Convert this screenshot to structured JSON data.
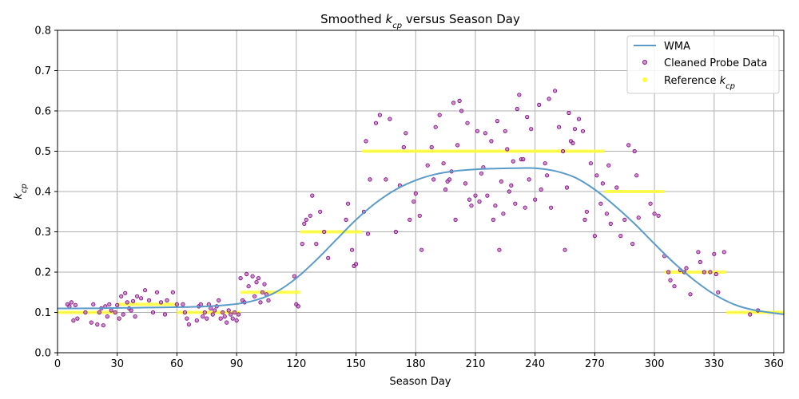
{
  "chart_data": {
    "type": "scatter",
    "title": {
      "prefix": "Smoothed ",
      "symbol": "k",
      "subscript": "cp",
      "suffix": " versus Season Day"
    },
    "xlabel": "Season Day",
    "ylabel": {
      "symbol": "k",
      "subscript": "cp"
    },
    "xlim": [
      0,
      365
    ],
    "ylim": [
      0,
      0.8
    ],
    "xticks": [
      0,
      30,
      60,
      90,
      120,
      150,
      180,
      210,
      240,
      270,
      300,
      330,
      360
    ],
    "yticks": [
      0.0,
      0.1,
      0.2,
      0.3,
      0.4,
      0.5,
      0.6,
      0.7,
      0.8
    ],
    "xtick_labels": [
      "0",
      "30",
      "60",
      "90",
      "120",
      "150",
      "180",
      "210",
      "240",
      "270",
      "300",
      "330",
      "360"
    ],
    "ytick_labels": [
      "0.0",
      "0.1",
      "0.2",
      "0.3",
      "0.4",
      "0.5",
      "0.6",
      "0.7",
      "0.8"
    ],
    "grid": true,
    "legend_position": "top-right",
    "legend": {
      "wma": "WMA",
      "probe": "Cleaned Probe Data",
      "reference": {
        "prefix": "Reference ",
        "symbol": "k",
        "subscript": "cp"
      }
    },
    "colors": {
      "wma": "#5b9bc8",
      "probe_fill": "#b565b5",
      "probe_edge": "#800080",
      "reference": "#ffff33",
      "grid": "#b0b0b0"
    },
    "series": [
      {
        "id": "wma",
        "kind": "line",
        "x": [
          0,
          15,
          30,
          45,
          60,
          75,
          90,
          100,
          110,
          120,
          130,
          140,
          150,
          160,
          170,
          180,
          190,
          200,
          210,
          220,
          230,
          240,
          250,
          260,
          270,
          280,
          290,
          300,
          310,
          320,
          330,
          340,
          350,
          365
        ],
        "y": [
          0.11,
          0.11,
          0.111,
          0.112,
          0.113,
          0.115,
          0.121,
          0.131,
          0.151,
          0.185,
          0.23,
          0.28,
          0.33,
          0.372,
          0.405,
          0.428,
          0.443,
          0.451,
          0.455,
          0.457,
          0.458,
          0.458,
          0.451,
          0.435,
          0.405,
          0.365,
          0.32,
          0.27,
          0.222,
          0.18,
          0.145,
          0.12,
          0.106,
          0.095
        ]
      },
      {
        "id": "reference",
        "kind": "step",
        "segments": [
          {
            "x0": 0,
            "x1": 30,
            "y": 0.1
          },
          {
            "x0": 30,
            "x1": 60,
            "y": 0.12
          },
          {
            "x0": 60,
            "x1": 92,
            "y": 0.1
          },
          {
            "x0": 92,
            "x1": 122,
            "y": 0.15
          },
          {
            "x0": 122,
            "x1": 153,
            "y": 0.3
          },
          {
            "x0": 153,
            "x1": 275,
            "y": 0.5
          },
          {
            "x0": 275,
            "x1": 305,
            "y": 0.4
          },
          {
            "x0": 305,
            "x1": 336,
            "y": 0.2
          },
          {
            "x0": 336,
            "x1": 365,
            "y": 0.1
          }
        ]
      },
      {
        "id": "probe",
        "kind": "scatter",
        "points": [
          [
            5,
            0.12
          ],
          [
            6,
            0.115
          ],
          [
            7,
            0.125
          ],
          [
            8,
            0.08
          ],
          [
            9,
            0.118
          ],
          [
            10,
            0.085
          ],
          [
            14,
            0.1
          ],
          [
            17,
            0.075
          ],
          [
            18,
            0.12
          ],
          [
            20,
            0.07
          ],
          [
            21,
            0.1
          ],
          [
            22,
            0.11
          ],
          [
            23,
            0.068
          ],
          [
            24,
            0.115
          ],
          [
            25,
            0.09
          ],
          [
            26,
            0.12
          ],
          [
            27,
            0.105
          ],
          [
            29,
            0.1
          ],
          [
            30,
            0.118
          ],
          [
            31,
            0.085
          ],
          [
            32,
            0.14
          ],
          [
            33,
            0.095
          ],
          [
            34,
            0.148
          ],
          [
            35,
            0.125
          ],
          [
            36,
            0.11
          ],
          [
            37,
            0.105
          ],
          [
            38,
            0.128
          ],
          [
            39,
            0.09
          ],
          [
            40,
            0.14
          ],
          [
            42,
            0.135
          ],
          [
            44,
            0.155
          ],
          [
            46,
            0.13
          ],
          [
            48,
            0.1
          ],
          [
            50,
            0.15
          ],
          [
            52,
            0.125
          ],
          [
            54,
            0.095
          ],
          [
            55,
            0.13
          ],
          [
            58,
            0.15
          ],
          [
            60,
            0.12
          ],
          [
            63,
            0.12
          ],
          [
            64,
            0.1
          ],
          [
            65,
            0.085
          ],
          [
            66,
            0.07
          ],
          [
            70,
            0.08
          ],
          [
            71,
            0.115
          ],
          [
            72,
            0.12
          ],
          [
            73,
            0.09
          ],
          [
            74,
            0.1
          ],
          [
            75,
            0.085
          ],
          [
            76,
            0.12
          ],
          [
            77,
            0.11
          ],
          [
            78,
            0.095
          ],
          [
            79,
            0.105
          ],
          [
            80,
            0.115
          ],
          [
            81,
            0.13
          ],
          [
            82,
            0.085
          ],
          [
            83,
            0.1
          ],
          [
            84,
            0.09
          ],
          [
            85,
            0.075
          ],
          [
            86,
            0.105
          ],
          [
            87,
            0.095
          ],
          [
            88,
            0.085
          ],
          [
            89,
            0.1
          ],
          [
            90,
            0.08
          ],
          [
            91,
            0.095
          ],
          [
            92,
            0.185
          ],
          [
            93,
            0.13
          ],
          [
            94,
            0.125
          ],
          [
            95,
            0.195
          ],
          [
            96,
            0.165
          ],
          [
            98,
            0.19
          ],
          [
            99,
            0.14
          ],
          [
            100,
            0.175
          ],
          [
            101,
            0.185
          ],
          [
            102,
            0.125
          ],
          [
            103,
            0.15
          ],
          [
            104,
            0.17
          ],
          [
            105,
            0.145
          ],
          [
            106,
            0.13
          ],
          [
            119,
            0.19
          ],
          [
            120,
            0.12
          ],
          [
            121,
            0.115
          ],
          [
            123,
            0.27
          ],
          [
            124,
            0.32
          ],
          [
            125,
            0.33
          ],
          [
            127,
            0.34
          ],
          [
            128,
            0.39
          ],
          [
            130,
            0.27
          ],
          [
            132,
            0.35
          ],
          [
            134,
            0.3
          ],
          [
            136,
            0.235
          ],
          [
            145,
            0.33
          ],
          [
            146,
            0.37
          ],
          [
            148,
            0.255
          ],
          [
            149,
            0.215
          ],
          [
            150,
            0.22
          ],
          [
            154,
            0.35
          ],
          [
            155,
            0.525
          ],
          [
            156,
            0.295
          ],
          [
            157,
            0.43
          ],
          [
            160,
            0.57
          ],
          [
            162,
            0.59
          ],
          [
            165,
            0.43
          ],
          [
            167,
            0.58
          ],
          [
            170,
            0.3
          ],
          [
            172,
            0.415
          ],
          [
            174,
            0.51
          ],
          [
            175,
            0.545
          ],
          [
            177,
            0.33
          ],
          [
            179,
            0.375
          ],
          [
            180,
            0.395
          ],
          [
            182,
            0.34
          ],
          [
            183,
            0.255
          ],
          [
            186,
            0.465
          ],
          [
            188,
            0.51
          ],
          [
            189,
            0.43
          ],
          [
            190,
            0.56
          ],
          [
            192,
            0.59
          ],
          [
            194,
            0.47
          ],
          [
            195,
            0.405
          ],
          [
            196,
            0.425
          ],
          [
            197,
            0.43
          ],
          [
            198,
            0.45
          ],
          [
            199,
            0.62
          ],
          [
            200,
            0.33
          ],
          [
            201,
            0.515
          ],
          [
            202,
            0.625
          ],
          [
            203,
            0.6
          ],
          [
            205,
            0.42
          ],
          [
            206,
            0.57
          ],
          [
            207,
            0.38
          ],
          [
            208,
            0.365
          ],
          [
            210,
            0.39
          ],
          [
            211,
            0.55
          ],
          [
            212,
            0.375
          ],
          [
            213,
            0.445
          ],
          [
            214,
            0.46
          ],
          [
            215,
            0.545
          ],
          [
            216,
            0.39
          ],
          [
            218,
            0.525
          ],
          [
            219,
            0.33
          ],
          [
            220,
            0.365
          ],
          [
            221,
            0.575
          ],
          [
            222,
            0.255
          ],
          [
            223,
            0.425
          ],
          [
            224,
            0.345
          ],
          [
            225,
            0.55
          ],
          [
            226,
            0.505
          ],
          [
            227,
            0.4
          ],
          [
            228,
            0.415
          ],
          [
            229,
            0.475
          ],
          [
            230,
            0.37
          ],
          [
            231,
            0.605
          ],
          [
            232,
            0.64
          ],
          [
            233,
            0.48
          ],
          [
            234,
            0.48
          ],
          [
            235,
            0.36
          ],
          [
            236,
            0.585
          ],
          [
            237,
            0.43
          ],
          [
            238,
            0.555
          ],
          [
            240,
            0.38
          ],
          [
            242,
            0.615
          ],
          [
            243,
            0.405
          ],
          [
            245,
            0.47
          ],
          [
            246,
            0.44
          ],
          [
            247,
            0.63
          ],
          [
            248,
            0.36
          ],
          [
            250,
            0.65
          ],
          [
            252,
            0.56
          ],
          [
            254,
            0.5
          ],
          [
            255,
            0.255
          ],
          [
            256,
            0.41
          ],
          [
            257,
            0.595
          ],
          [
            258,
            0.525
          ],
          [
            259,
            0.52
          ],
          [
            260,
            0.555
          ],
          [
            262,
            0.58
          ],
          [
            264,
            0.55
          ],
          [
            265,
            0.33
          ],
          [
            266,
            0.35
          ],
          [
            268,
            0.47
          ],
          [
            270,
            0.29
          ],
          [
            271,
            0.44
          ],
          [
            273,
            0.37
          ],
          [
            274,
            0.42
          ],
          [
            276,
            0.345
          ],
          [
            277,
            0.465
          ],
          [
            278,
            0.32
          ],
          [
            281,
            0.41
          ],
          [
            283,
            0.29
          ],
          [
            285,
            0.33
          ],
          [
            287,
            0.515
          ],
          [
            289,
            0.27
          ],
          [
            290,
            0.5
          ],
          [
            291,
            0.44
          ],
          [
            292,
            0.335
          ],
          [
            298,
            0.37
          ],
          [
            300,
            0.345
          ],
          [
            302,
            0.34
          ],
          [
            305,
            0.24
          ],
          [
            307,
            0.2
          ],
          [
            308,
            0.18
          ],
          [
            310,
            0.165
          ],
          [
            313,
            0.205
          ],
          [
            315,
            0.2
          ],
          [
            316,
            0.21
          ],
          [
            318,
            0.145
          ],
          [
            322,
            0.25
          ],
          [
            323,
            0.225
          ],
          [
            325,
            0.2
          ],
          [
            328,
            0.2
          ],
          [
            330,
            0.245
          ],
          [
            331,
            0.195
          ],
          [
            332,
            0.15
          ],
          [
            335,
            0.25
          ],
          [
            348,
            0.095
          ],
          [
            352,
            0.105
          ]
        ]
      }
    ]
  }
}
